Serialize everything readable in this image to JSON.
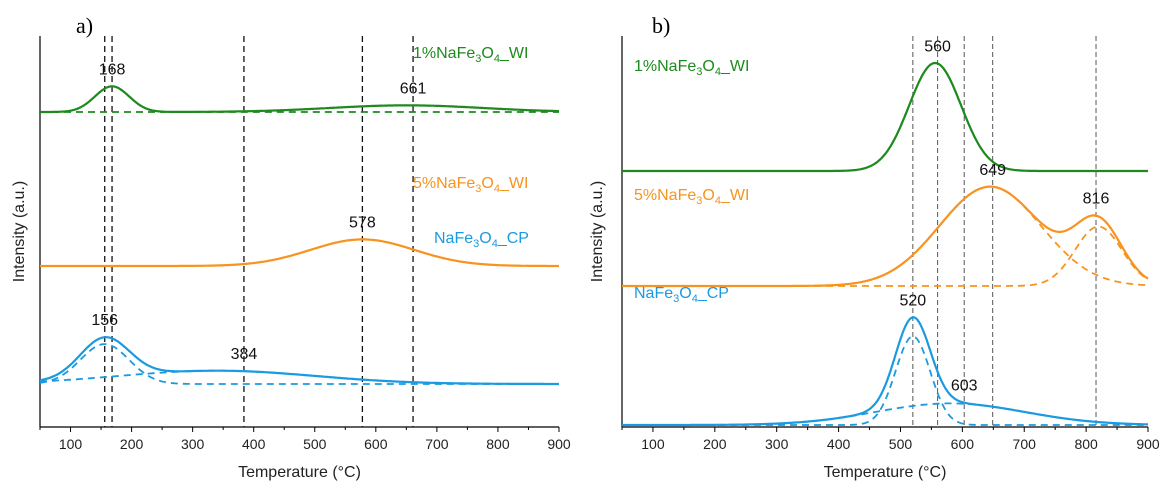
{
  "chart_data": [
    {
      "panel_label": "a)",
      "type": "line",
      "xlabel": "Temperature (°C)",
      "ylabel": "Intensity (a.u.)",
      "xlim": [
        50,
        900
      ],
      "xticks": [
        100,
        200,
        300,
        400,
        500,
        600,
        700,
        800,
        900
      ],
      "ref_lines": [
        156,
        168,
        384,
        578,
        661
      ],
      "series": [
        {
          "name": "1%NaFe3O4_WI",
          "color": "#1e8a1e",
          "peaks": [
            {
              "x": 168,
              "label": "168"
            },
            {
              "x": 661,
              "label": "661"
            }
          ],
          "fit_peaks": [
            {
              "center": 168,
              "amp": 0.27,
              "width": 28
            },
            {
              "center": 650,
              "amp": 0.07,
              "width": 125
            }
          ],
          "fit_baseline": 0.35
        },
        {
          "name": "5%NaFe3O4_WI",
          "color": "#f7931e",
          "peaks": [
            {
              "x": 578,
              "label": "578"
            }
          ],
          "fit_peaks": [
            {
              "center": 578,
              "amp": 0.28,
              "width": 85
            }
          ],
          "fit_baseline": 0.0
        },
        {
          "name": "NaFe3O4_CP",
          "color": "#1a9ae0",
          "peaks": [
            {
              "x": 156,
              "label": "156"
            },
            {
              "x": 384,
              "label": "384"
            }
          ],
          "fit_peaks": [
            {
              "center": 156,
              "amp": 0.42,
              "width": 40
            },
            {
              "center": 340,
              "amp": 0.14,
              "width": 160
            }
          ],
          "fit_baseline": 0.0
        }
      ]
    },
    {
      "panel_label": "b)",
      "type": "line",
      "xlabel": "Temperature (°C)",
      "ylabel": "Intensity (a.u.)",
      "xlim": [
        50,
        900
      ],
      "xticks": [
        100,
        200,
        300,
        400,
        500,
        600,
        700,
        800,
        900
      ],
      "ref_lines": [
        520,
        560,
        603,
        649,
        816
      ],
      "series": [
        {
          "name": "1%NaFe3O4_WI",
          "color": "#1e8a1e",
          "peaks": [
            {
              "x": 560,
              "label": "560"
            }
          ],
          "fit_peaks": [
            {
              "center": 556,
              "amp": 1.0,
              "width": 42
            }
          ],
          "fit_baseline": 0.0
        },
        {
          "name": "5%NaFe3O4_WI",
          "color": "#f7931e",
          "peaks": [
            {
              "x": 649,
              "label": "649"
            },
            {
              "x": 816,
              "label": "816"
            }
          ],
          "fit_peaks": [
            {
              "center": 645,
              "amp": 0.92,
              "width": 82
            },
            {
              "center": 820,
              "amp": 0.55,
              "width": 38
            }
          ],
          "fit_baseline": 0.0
        },
        {
          "name": "NaFe3O4_CP",
          "color": "#1a9ae0",
          "peaks": [
            {
              "x": 520,
              "label": "520"
            },
            {
              "x": 603,
              "label": "603"
            }
          ],
          "fit_peaks": [
            {
              "center": 520,
              "amp": 0.82,
              "width": 28
            },
            {
              "center": 580,
              "amp": 0.2,
              "width": 120
            }
          ],
          "fit_baseline": 0.0
        }
      ]
    }
  ]
}
